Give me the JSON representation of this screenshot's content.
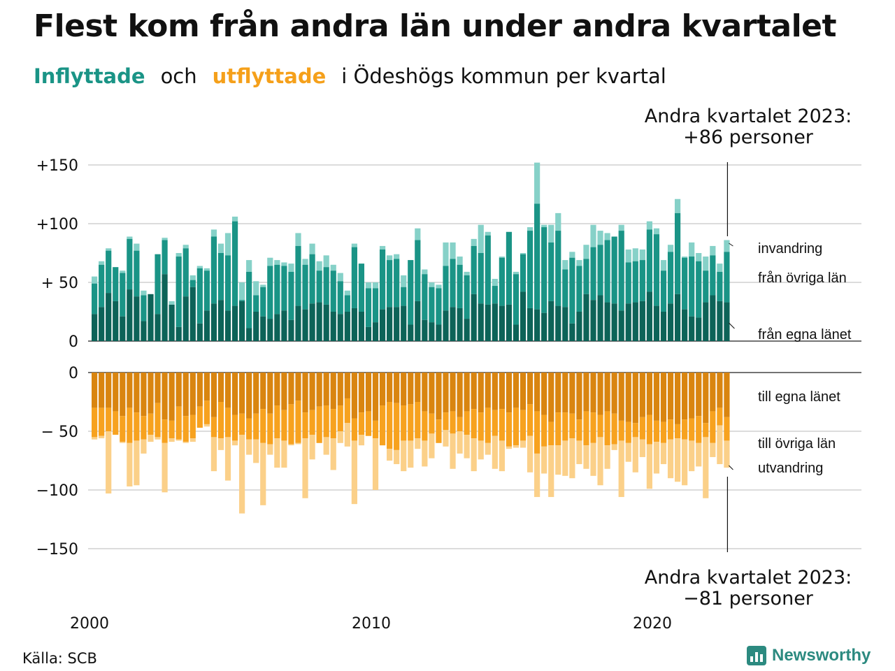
{
  "title": "Flest kom från andra län under andra kvartalet",
  "subtitle": {
    "inflow": "Inflyttade",
    "and": "och",
    "outflow": "utflyttade",
    "rest": "i Ödeshögs kommun per kvartal"
  },
  "source": "Källa: SCB",
  "brand": "Newsworthy",
  "chart_data": {
    "type": "bar",
    "stacked": true,
    "x_start_year": 2000,
    "x_start_quarter": 1,
    "x_ticks": [
      2000,
      2010,
      2020
    ],
    "tick_labels": {
      "inflow": [
        "+150",
        "+100",
        "+ 50",
        "0"
      ],
      "outflow": [
        "0",
        "− 50",
        "−100",
        "−150"
      ]
    },
    "ylim_inflow": [
      0,
      150
    ],
    "ylim_outflow": [
      -150,
      0
    ],
    "grid": true,
    "colors": {
      "inflow_own": "#0d6358",
      "inflow_other": "#1a9486",
      "inflow_immigration": "#86d1c8",
      "outflow_own": "#d98510",
      "outflow_other": "#f7a21f",
      "outflow_emigration": "#fbd089"
    },
    "series_labels": {
      "inflow_immigration": "invandring",
      "inflow_other": "från övriga län",
      "inflow_own": "från egna länet",
      "outflow_own": "till egna länet",
      "outflow_other": "till övriga län",
      "outflow_emigration": "utvandring"
    },
    "annotations": {
      "top": [
        "Andra kvartalet 2023:",
        "+86 personer"
      ],
      "bottom": [
        "Andra kvartalet 2023:",
        "−81 personer"
      ]
    },
    "inflow_total": [
      55,
      68,
      79,
      63,
      60,
      89,
      83,
      43,
      40,
      74,
      88,
      34,
      75,
      82,
      56,
      64,
      62,
      95,
      83,
      92,
      106,
      50,
      69,
      51,
      48,
      71,
      69,
      67,
      66,
      92,
      70,
      83,
      68,
      73,
      65,
      58,
      43,
      83,
      66,
      50,
      50,
      81,
      73,
      74,
      56,
      69,
      96,
      61,
      50,
      48,
      84,
      84,
      72,
      59,
      87,
      99,
      93,
      53,
      72,
      93,
      59,
      75,
      97,
      152,
      99,
      99,
      109,
      69,
      76,
      69,
      82,
      99,
      94,
      92,
      89,
      99,
      78,
      79,
      78,
      102,
      96,
      69,
      82,
      121,
      72,
      84,
      75,
      72,
      81,
      66,
      86
    ],
    "inflow_other_cum": [
      49,
      65,
      77,
      63,
      58,
      87,
      77,
      39,
      40,
      74,
      86,
      31,
      72,
      79,
      52,
      62,
      60,
      89,
      75,
      73,
      102,
      35,
      59,
      39,
      46,
      64,
      65,
      64,
      59,
      81,
      65,
      74,
      60,
      63,
      60,
      51,
      39,
      80,
      66,
      45,
      45,
      78,
      69,
      70,
      46,
      69,
      86,
      57,
      46,
      45,
      64,
      70,
      65,
      56,
      81,
      75,
      90,
      47,
      71,
      93,
      57,
      74,
      94,
      117,
      97,
      84,
      94,
      61,
      71,
      64,
      70,
      80,
      82,
      86,
      89,
      94,
      67,
      68,
      69,
      95,
      91,
      60,
      76,
      109,
      71,
      72,
      68,
      60,
      73,
      59,
      76
    ],
    "inflow_own": [
      23,
      29,
      41,
      34,
      21,
      44,
      38,
      17,
      40,
      23,
      57,
      31,
      12,
      38,
      46,
      15,
      26,
      32,
      35,
      26,
      30,
      34,
      11,
      25,
      21,
      19,
      23,
      26,
      18,
      30,
      27,
      32,
      33,
      31,
      25,
      23,
      25,
      28,
      25,
      12,
      16,
      27,
      29,
      29,
      30,
      14,
      34,
      18,
      16,
      14,
      26,
      29,
      28,
      19,
      40,
      32,
      31,
      32,
      30,
      31,
      14,
      42,
      28,
      27,
      24,
      34,
      30,
      29,
      15,
      25,
      40,
      35,
      39,
      33,
      32,
      26,
      32,
      33,
      34,
      42,
      30,
      25,
      32,
      40,
      27,
      21,
      20,
      33,
      39,
      34,
      33
    ],
    "outflow_own_cum": [
      -30,
      -30,
      -30,
      -33,
      -37,
      -30,
      -34,
      -37,
      -35,
      -26,
      -40,
      -41,
      -29,
      -37,
      -36,
      -29,
      -24,
      -38,
      -25,
      -30,
      -36,
      -35,
      -39,
      -35,
      -31,
      -35,
      -28,
      -32,
      -27,
      -24,
      -34,
      -32,
      -29,
      -28,
      -31,
      -28,
      -22,
      -39,
      -34,
      -33,
      -41,
      -28,
      -25,
      -26,
      -28,
      -27,
      -25,
      -33,
      -35,
      -40,
      -34,
      -33,
      -38,
      -33,
      -31,
      -34,
      -30,
      -32,
      -31,
      -34,
      -30,
      -32,
      -27,
      -33,
      -36,
      -42,
      -34,
      -34,
      -35,
      -40,
      -33,
      -34,
      -36,
      -33,
      -35,
      -41,
      -42,
      -43,
      -38,
      -36,
      -41,
      -42,
      -40,
      -44,
      -40,
      -39,
      -37,
      -43,
      -33,
      -30,
      -38
    ],
    "outflow_other_cum": [
      -55,
      -54,
      -50,
      -53,
      -59,
      -60,
      -58,
      -57,
      -53,
      -55,
      -60,
      -56,
      -57,
      -59,
      -56,
      -47,
      -44,
      -55,
      -56,
      -55,
      -58,
      -53,
      -57,
      -57,
      -60,
      -61,
      -56,
      -58,
      -61,
      -60,
      -56,
      -53,
      -60,
      -55,
      -56,
      -50,
      -43,
      -58,
      -53,
      -54,
      -56,
      -62,
      -65,
      -66,
      -58,
      -58,
      -56,
      -58,
      -52,
      -60,
      -49,
      -52,
      -50,
      -53,
      -56,
      -58,
      -60,
      -54,
      -58,
      -63,
      -62,
      -58,
      -54,
      -69,
      -63,
      -62,
      -62,
      -58,
      -56,
      -58,
      -62,
      -60,
      -55,
      -62,
      -61,
      -58,
      -60,
      -55,
      -57,
      -61,
      -59,
      -60,
      -57,
      -56,
      -57,
      -58,
      -60,
      -55,
      -60,
      -45,
      -58
    ],
    "outflow_total": [
      -57,
      -56,
      -103,
      -53,
      -60,
      -97,
      -96,
      -69,
      -59,
      -57,
      -102,
      -59,
      -58,
      -60,
      -59,
      -47,
      -46,
      -84,
      -66,
      -92,
      -62,
      -120,
      -70,
      -77,
      -113,
      -70,
      -81,
      -81,
      -62,
      -61,
      -107,
      -74,
      -60,
      -70,
      -83,
      -60,
      -63,
      -112,
      -62,
      -54,
      -100,
      -59,
      -75,
      -78,
      -84,
      -81,
      -65,
      -80,
      -73,
      -58,
      -63,
      -82,
      -69,
      -73,
      -84,
      -74,
      -70,
      -82,
      -84,
      -65,
      -64,
      -64,
      -85,
      -106,
      -86,
      -106,
      -87,
      -88,
      -90,
      -78,
      -82,
      -88,
      -96,
      -82,
      -66,
      -106,
      -76,
      -85,
      -72,
      -99,
      -86,
      -78,
      -90,
      -93,
      -96,
      -84,
      -80,
      -107,
      -72,
      -78,
      -81
    ]
  }
}
